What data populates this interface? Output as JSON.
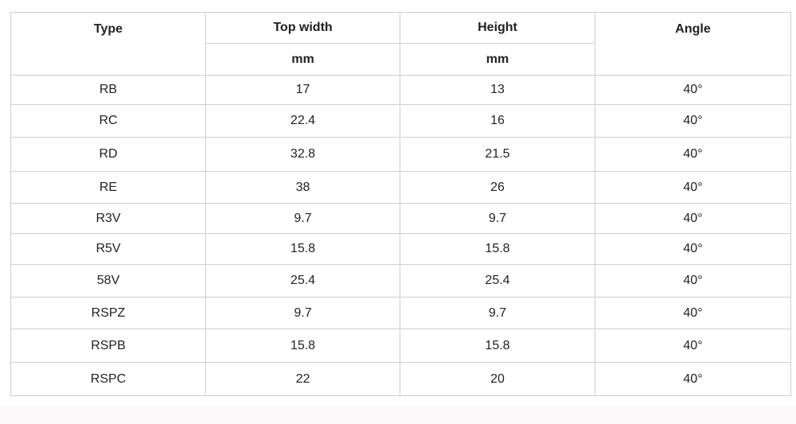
{
  "table": {
    "headers": [
      "Type",
      "Top width",
      "Height",
      "Angle"
    ],
    "units": [
      "mm",
      "mm"
    ],
    "rows": [
      [
        "RB",
        "17",
        "13",
        "40°"
      ],
      [
        "RC",
        "22.4",
        "16",
        "40°"
      ],
      [
        "RD",
        "32.8",
        "21.5",
        "40°"
      ],
      [
        "RE",
        "38",
        "26",
        "40°"
      ],
      [
        "R3V",
        "9.7",
        "9.7",
        "40°"
      ],
      [
        "R5V",
        "15.8",
        "15.8",
        "40°"
      ],
      [
        "58V",
        "25.4",
        "25.4",
        "40°"
      ],
      [
        "RSPZ",
        "9.7",
        "9.7",
        "40°"
      ],
      [
        "RSPB",
        "15.8",
        "15.8",
        "40°"
      ],
      [
        "RSPC",
        "22",
        "20",
        "40°"
      ]
    ]
  }
}
